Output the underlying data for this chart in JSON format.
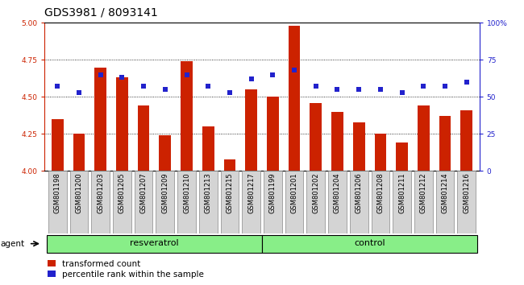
{
  "title": "GDS3981 / 8093141",
  "samples": [
    "GSM801198",
    "GSM801200",
    "GSM801203",
    "GSM801205",
    "GSM801207",
    "GSM801209",
    "GSM801210",
    "GSM801213",
    "GSM801215",
    "GSM801217",
    "GSM801199",
    "GSM801201",
    "GSM801202",
    "GSM801204",
    "GSM801206",
    "GSM801208",
    "GSM801211",
    "GSM801212",
    "GSM801214",
    "GSM801216"
  ],
  "bar_values": [
    4.35,
    4.25,
    4.7,
    4.63,
    4.44,
    4.24,
    4.74,
    4.3,
    4.08,
    4.55,
    4.5,
    4.98,
    4.46,
    4.4,
    4.33,
    4.25,
    4.19,
    4.44,
    4.37,
    4.41
  ],
  "dot_values": [
    57,
    53,
    65,
    63,
    57,
    55,
    65,
    57,
    53,
    62,
    65,
    68,
    57,
    55,
    55,
    55,
    53,
    57,
    57,
    60
  ],
  "resveratrol_count": 10,
  "control_count": 10,
  "bar_color": "#cc2200",
  "dot_color": "#2222cc",
  "bar_bottom": 4.0,
  "ylim_left": [
    4.0,
    5.0
  ],
  "ylim_right": [
    0,
    100
  ],
  "yticks_left": [
    4.0,
    4.25,
    4.5,
    4.75,
    5.0
  ],
  "yticks_right": [
    0,
    25,
    50,
    75,
    100
  ],
  "ytick_labels_right": [
    "0",
    "25",
    "50",
    "75",
    "100%"
  ],
  "grid_lines": [
    4.25,
    4.5,
    4.75
  ],
  "legend_bar": "transformed count",
  "legend_dot": "percentile rank within the sample",
  "agent_label": "agent",
  "group_labels": [
    "resveratrol",
    "control"
  ],
  "bg_color_plot": "#ffffff",
  "bg_color_xticklabels": "#d4d4d4",
  "group_color": "#88ee88",
  "title_fontsize": 10,
  "tick_fontsize": 6.5,
  "xtick_fontsize": 6.0
}
